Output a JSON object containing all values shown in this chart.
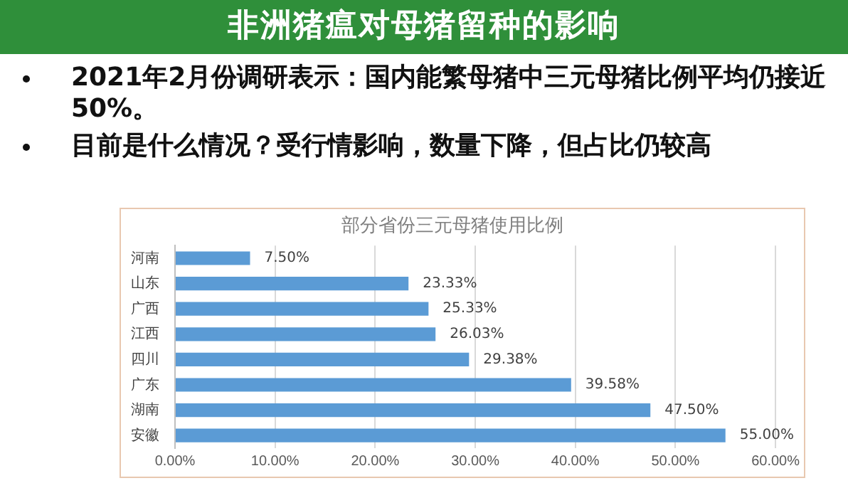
{
  "chart_data": {
    "type": "bar",
    "orientation": "horizontal",
    "title": "非洲猪瘟对母猪留种的影响",
    "subtitle": "部分省份三元母猪使用比例",
    "annotations": [
      "2021年2月份调研表示：国内能繁母猪中三元母猪比例平均仍接近50%。",
      "目前是什么情况？受行情影响，数量下降，但占比仍较高"
    ],
    "categories": [
      "河南",
      "山东",
      "广西",
      "江西",
      "四川",
      "广东",
      "湖南",
      "安徽"
    ],
    "values": [
      7.5,
      23.33,
      25.33,
      26.03,
      29.38,
      39.58,
      47.5,
      55
    ],
    "value_labels": [
      "7.50%",
      "23.33%",
      "25.33%",
      "26.03%",
      "29.38%",
      "39.58%",
      "47.50%",
      "55.00%"
    ],
    "color": "#5b9bd5",
    "xlim": [
      0,
      60
    ],
    "xticks": [
      {
        "value": 0,
        "label": "0.00%"
      },
      {
        "value": 10,
        "label": "10.00%"
      },
      {
        "value": 20,
        "label": "20.00%"
      },
      {
        "value": 30,
        "label": "30.00%"
      },
      {
        "value": 40,
        "label": "40.00%"
      },
      {
        "value": 50,
        "label": "50.00%"
      },
      {
        "value": 60,
        "label": "60.00%"
      }
    ],
    "grid": "x",
    "legend": false
  }
}
